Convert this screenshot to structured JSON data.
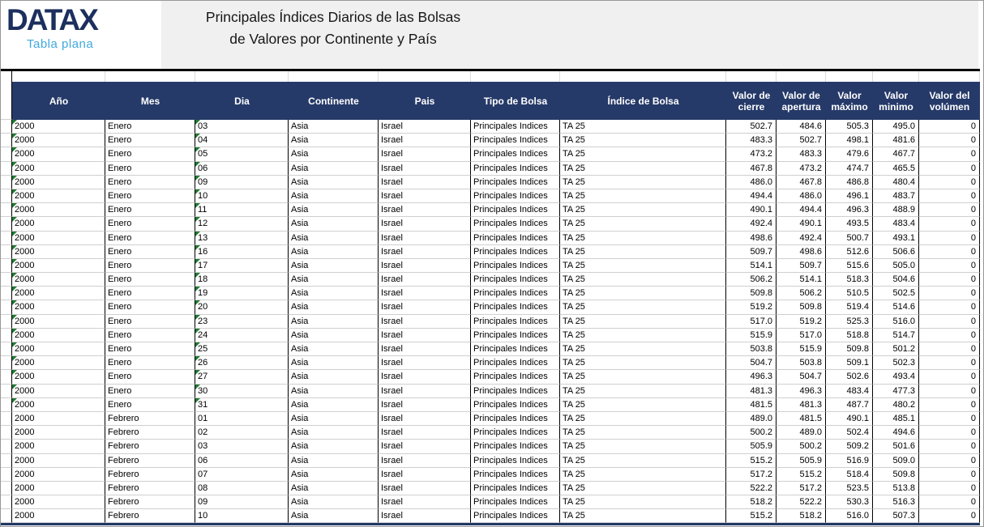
{
  "logo": {
    "brand": "DATAX",
    "subtitle": "Tabla plana"
  },
  "title": {
    "line1": "Principales Índices Diarios de las Bolsas",
    "line2": "de Valores por Continente y País"
  },
  "colors": {
    "band_bg": "#F0F0F0",
    "header_bg": "#263A69",
    "header_text": "#FFFFFF",
    "brand_navy": "#1C2F5E",
    "brand_blue": "#3FA9DC",
    "marker_green": "#1F7A33",
    "bottom_border": "#203864"
  },
  "table": {
    "columns": [
      {
        "key": "ano",
        "label": "Año"
      },
      {
        "key": "mes",
        "label": "Mes"
      },
      {
        "key": "dia",
        "label": "Dia"
      },
      {
        "key": "continente",
        "label": "Continente"
      },
      {
        "key": "pais",
        "label": "Pais"
      },
      {
        "key": "tipo_bolsa",
        "label": "Tipo de Bolsa"
      },
      {
        "key": "indice_bolsa",
        "label": "Índice de Bolsa"
      },
      {
        "key": "valor_cierre",
        "label": "Valor de cierre"
      },
      {
        "key": "valor_apertura",
        "label": "Valor de apertura"
      },
      {
        "key": "valor_maximo",
        "label": "Valor máximo"
      },
      {
        "key": "valor_minimo",
        "label": "Valor minimo"
      },
      {
        "key": "valor_volumen",
        "label": "Valor del volúmen"
      }
    ],
    "rows": [
      {
        "marker": true,
        "cells": [
          "2000",
          "Enero",
          "03",
          "Asia",
          "Israel",
          "Principales Indices",
          "TA 25",
          "502.7",
          "484.6",
          "505.3",
          "495.0",
          "0"
        ]
      },
      {
        "marker": true,
        "cells": [
          "2000",
          "Enero",
          "04",
          "Asia",
          "Israel",
          "Principales Indices",
          "TA 25",
          "483.3",
          "502.7",
          "498.1",
          "481.6",
          "0"
        ]
      },
      {
        "marker": true,
        "cells": [
          "2000",
          "Enero",
          "05",
          "Asia",
          "Israel",
          "Principales Indices",
          "TA 25",
          "473.2",
          "483.3",
          "479.6",
          "467.7",
          "0"
        ]
      },
      {
        "marker": true,
        "cells": [
          "2000",
          "Enero",
          "06",
          "Asia",
          "Israel",
          "Principales Indices",
          "TA 25",
          "467.8",
          "473.2",
          "474.7",
          "465.5",
          "0"
        ]
      },
      {
        "marker": true,
        "cells": [
          "2000",
          "Enero",
          "09",
          "Asia",
          "Israel",
          "Principales Indices",
          "TA 25",
          "486.0",
          "467.8",
          "486.8",
          "480.4",
          "0"
        ]
      },
      {
        "marker": true,
        "cells": [
          "2000",
          "Enero",
          "10",
          "Asia",
          "Israel",
          "Principales Indices",
          "TA 25",
          "494.4",
          "486.0",
          "496.1",
          "483.7",
          "0"
        ]
      },
      {
        "marker": true,
        "cells": [
          "2000",
          "Enero",
          "11",
          "Asia",
          "Israel",
          "Principales Indices",
          "TA 25",
          "490.1",
          "494.4",
          "496.3",
          "488.9",
          "0"
        ]
      },
      {
        "marker": true,
        "cells": [
          "2000",
          "Enero",
          "12",
          "Asia",
          "Israel",
          "Principales Indices",
          "TA 25",
          "492.4",
          "490.1",
          "493.5",
          "483.4",
          "0"
        ]
      },
      {
        "marker": true,
        "cells": [
          "2000",
          "Enero",
          "13",
          "Asia",
          "Israel",
          "Principales Indices",
          "TA 25",
          "498.6",
          "492.4",
          "500.7",
          "493.1",
          "0"
        ]
      },
      {
        "marker": true,
        "cells": [
          "2000",
          "Enero",
          "16",
          "Asia",
          "Israel",
          "Principales Indices",
          "TA 25",
          "509.7",
          "498.6",
          "512.6",
          "506.6",
          "0"
        ]
      },
      {
        "marker": true,
        "cells": [
          "2000",
          "Enero",
          "17",
          "Asia",
          "Israel",
          "Principales Indices",
          "TA 25",
          "514.1",
          "509.7",
          "515.6",
          "505.0",
          "0"
        ]
      },
      {
        "marker": true,
        "cells": [
          "2000",
          "Enero",
          "18",
          "Asia",
          "Israel",
          "Principales Indices",
          "TA 25",
          "506.2",
          "514.1",
          "518.3",
          "504.6",
          "0"
        ]
      },
      {
        "marker": true,
        "cells": [
          "2000",
          "Enero",
          "19",
          "Asia",
          "Israel",
          "Principales Indices",
          "TA 25",
          "509.8",
          "506.2",
          "510.5",
          "502.5",
          "0"
        ]
      },
      {
        "marker": true,
        "cells": [
          "2000",
          "Enero",
          "20",
          "Asia",
          "Israel",
          "Principales Indices",
          "TA 25",
          "519.2",
          "509.8",
          "519.4",
          "514.6",
          "0"
        ]
      },
      {
        "marker": true,
        "cells": [
          "2000",
          "Enero",
          "23",
          "Asia",
          "Israel",
          "Principales Indices",
          "TA 25",
          "517.0",
          "519.2",
          "525.3",
          "516.0",
          "0"
        ]
      },
      {
        "marker": true,
        "cells": [
          "2000",
          "Enero",
          "24",
          "Asia",
          "Israel",
          "Principales Indices",
          "TA 25",
          "515.9",
          "517.0",
          "518.8",
          "514.7",
          "0"
        ]
      },
      {
        "marker": true,
        "cells": [
          "2000",
          "Enero",
          "25",
          "Asia",
          "Israel",
          "Principales Indices",
          "TA 25",
          "503.8",
          "515.9",
          "509.8",
          "501.2",
          "0"
        ]
      },
      {
        "marker": true,
        "cells": [
          "2000",
          "Enero",
          "26",
          "Asia",
          "Israel",
          "Principales Indices",
          "TA 25",
          "504.7",
          "503.8",
          "509.1",
          "502.3",
          "0"
        ]
      },
      {
        "marker": true,
        "cells": [
          "2000",
          "Enero",
          "27",
          "Asia",
          "Israel",
          "Principales Indices",
          "TA 25",
          "496.3",
          "504.7",
          "502.6",
          "493.4",
          "0"
        ]
      },
      {
        "marker": true,
        "cells": [
          "2000",
          "Enero",
          "30",
          "Asia",
          "Israel",
          "Principales Indices",
          "TA 25",
          "481.3",
          "496.3",
          "483.4",
          "477.3",
          "0"
        ]
      },
      {
        "marker": true,
        "cells": [
          "2000",
          "Enero",
          "31",
          "Asia",
          "Israel",
          "Principales Indices",
          "TA 25",
          "481.5",
          "481.3",
          "487.7",
          "480.2",
          "0"
        ]
      },
      {
        "marker": false,
        "cells": [
          "2000",
          "Febrero",
          "01",
          "Asia",
          "Israel",
          "Principales Indices",
          "TA 25",
          "489.0",
          "481.5",
          "490.1",
          "485.1",
          "0"
        ]
      },
      {
        "marker": false,
        "cells": [
          "2000",
          "Febrero",
          "02",
          "Asia",
          "Israel",
          "Principales Indices",
          "TA 25",
          "500.2",
          "489.0",
          "502.4",
          "494.6",
          "0"
        ]
      },
      {
        "marker": false,
        "cells": [
          "2000",
          "Febrero",
          "03",
          "Asia",
          "Israel",
          "Principales Indices",
          "TA 25",
          "505.9",
          "500.2",
          "509.2",
          "501.6",
          "0"
        ]
      },
      {
        "marker": false,
        "cells": [
          "2000",
          "Febrero",
          "06",
          "Asia",
          "Israel",
          "Principales Indices",
          "TA 25",
          "515.2",
          "505.9",
          "516.9",
          "509.0",
          "0"
        ]
      },
      {
        "marker": false,
        "cells": [
          "2000",
          "Febrero",
          "07",
          "Asia",
          "Israel",
          "Principales Indices",
          "TA 25",
          "517.2",
          "515.2",
          "518.4",
          "509.8",
          "0"
        ]
      },
      {
        "marker": false,
        "cells": [
          "2000",
          "Febrero",
          "08",
          "Asia",
          "Israel",
          "Principales Indices",
          "TA 25",
          "522.2",
          "517.2",
          "523.5",
          "513.8",
          "0"
        ]
      },
      {
        "marker": false,
        "cells": [
          "2000",
          "Febrero",
          "09",
          "Asia",
          "Israel",
          "Principales Indices",
          "TA 25",
          "518.2",
          "522.2",
          "530.3",
          "516.3",
          "0"
        ]
      },
      {
        "marker": false,
        "cells": [
          "2000",
          "Febrero",
          "10",
          "Asia",
          "Israel",
          "Principales Indices",
          "TA 25",
          "515.2",
          "518.2",
          "516.0",
          "507.3",
          "0"
        ]
      }
    ]
  }
}
